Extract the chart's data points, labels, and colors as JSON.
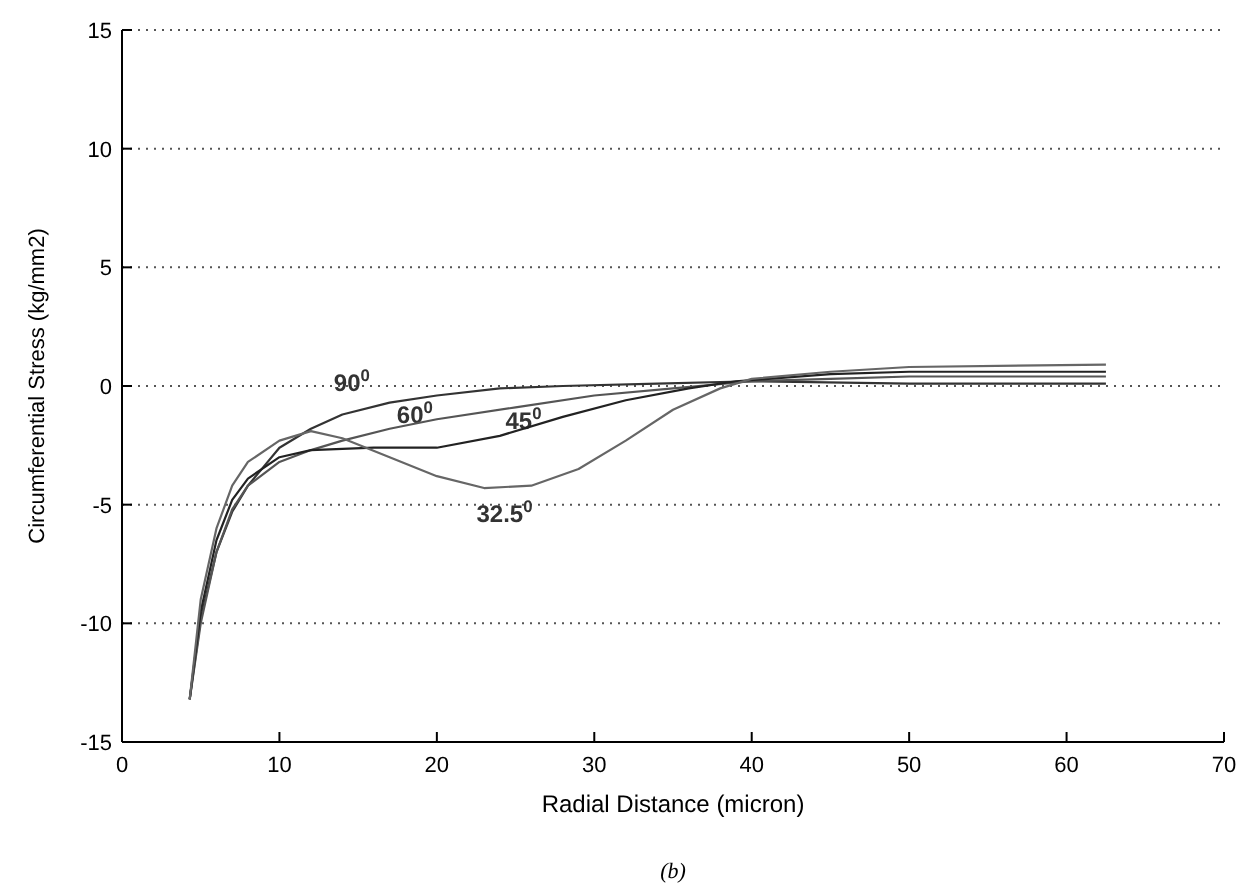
{
  "chart_data": {
    "type": "line",
    "xlabel": "Radial Distance (micron)",
    "ylabel": "Circumferential Stress (kg/mm2)",
    "xlim": [
      0,
      70
    ],
    "xticks": [
      0,
      10,
      20,
      30,
      40,
      50,
      60,
      70
    ],
    "ylim": [
      -15,
      15
    ],
    "yticks": [
      -15,
      -10,
      -5,
      0,
      5,
      10,
      15
    ],
    "grid": "y",
    "marker": "none",
    "line_style": "solid",
    "series": [
      {
        "name": "90$^{0}$",
        "color": "#333333",
        "x": [
          4.3,
          5,
          6,
          7,
          8,
          10,
          12,
          14,
          17,
          20,
          24,
          28,
          34,
          40,
          50,
          62.5
        ],
        "values": [
          -13.2,
          -9.8,
          -7,
          -5.3,
          -4.2,
          -2.6,
          -1.8,
          -1.2,
          -0.7,
          -0.4,
          -0.1,
          0,
          0.1,
          0.2,
          0.1,
          0.1
        ]
      },
      {
        "name": "60$^{0}$",
        "color": "#555555",
        "x": [
          4.3,
          5,
          6,
          7,
          8,
          10,
          12,
          14,
          17,
          20,
          25,
          30,
          35,
          40,
          45,
          50,
          62.5
        ],
        "values": [
          -13.2,
          -10,
          -7,
          -5.2,
          -4.2,
          -3.2,
          -2.7,
          -2.3,
          -1.8,
          -1.4,
          -0.9,
          -0.4,
          -0.1,
          0.2,
          0.3,
          0.4,
          0.4
        ]
      },
      {
        "name": "45$^{0}$",
        "color": "#222222",
        "x": [
          4.3,
          5,
          6,
          7,
          8,
          10,
          12,
          16,
          20,
          24,
          28,
          32,
          36,
          39,
          45,
          50,
          62.5
        ],
        "values": [
          -13.2,
          -9.5,
          -6.5,
          -4.8,
          -3.9,
          -3,
          -2.7,
          -2.6,
          -2.6,
          -2.1,
          -1.3,
          -0.6,
          -0.1,
          0.2,
          0.5,
          0.6,
          0.6
        ]
      },
      {
        "name": "32.5$^{0}$",
        "color": "#666666",
        "x": [
          4.3,
          5,
          6,
          7,
          8,
          10,
          12,
          14,
          17,
          20,
          23,
          26,
          29,
          32,
          35,
          38,
          40,
          45,
          50,
          62.5
        ],
        "values": [
          -13.2,
          -9,
          -6,
          -4.2,
          -3.2,
          -2.3,
          -1.9,
          -2.2,
          -3,
          -3.8,
          -4.3,
          -4.2,
          -3.5,
          -2.3,
          -1,
          -0.1,
          0.3,
          0.6,
          0.8,
          0.9
        ]
      }
    ],
    "annotations": [
      "(b)"
    ]
  }
}
